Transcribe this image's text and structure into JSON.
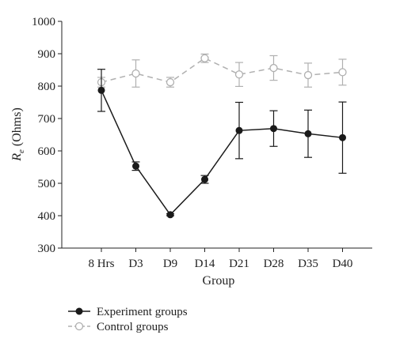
{
  "chart_data": {
    "type": "line",
    "title": "",
    "xlabel": "Group",
    "ylabel_main": "R",
    "ylabel_sub": "e",
    "ylabel_unit": " (Ohms)",
    "ylim": [
      300,
      1000
    ],
    "yticks": [
      "300",
      "400",
      "500",
      "600",
      "700",
      "800",
      "900",
      "1000"
    ],
    "categories": [
      "8 Hrs",
      "D3",
      "D9",
      "D14",
      "D21",
      "D28",
      "D35",
      "D40"
    ],
    "grid": false,
    "legend_position": "bottom-left",
    "series": [
      {
        "name": "Experiment groups",
        "color": "#1a1a1a",
        "line_style": "solid",
        "marker": "filled-circle",
        "values": [
          787,
          553,
          403,
          512,
          663,
          669,
          653,
          641
        ],
        "error": [
          65,
          13,
          3,
          12,
          87,
          55,
          73,
          110
        ]
      },
      {
        "name": "Control groups",
        "color": "#b0b0b0",
        "line_style": "dashed",
        "marker": "open-circle",
        "values": [
          812,
          839,
          812,
          886,
          836,
          856,
          834,
          843
        ],
        "error": [
          15,
          42,
          15,
          13,
          37,
          38,
          37,
          40
        ]
      }
    ]
  }
}
